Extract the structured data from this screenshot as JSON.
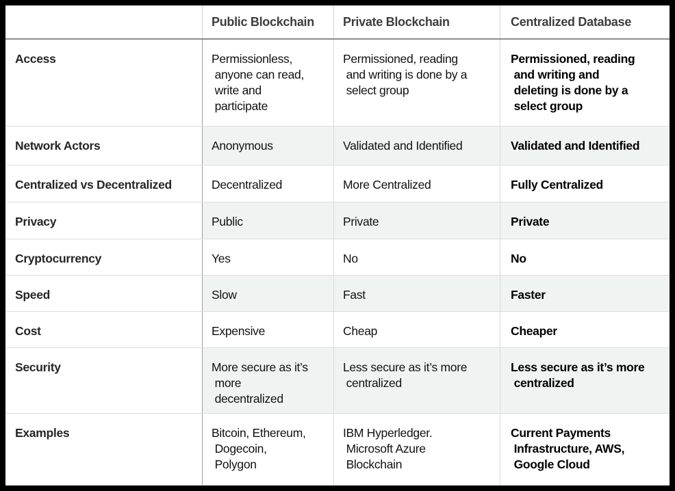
{
  "colors": {
    "frame": "#000000",
    "row_tint": "#eff4f2",
    "header_rule": "#8d8d87"
  },
  "chart_data": {
    "type": "table",
    "title": "Public Blockchain vs Private Blockchain vs Centralized Database comparison",
    "columns": [
      "",
      "Public Blockchain",
      "Private Blockchain",
      "Centralized Database"
    ],
    "rows": [
      {
        "label": "Access",
        "cells": [
          "Permissionless,\n anyone can read,\n write and\n participate",
          "Permissioned, reading\n and writing is done by a\n select group",
          "Permissioned, reading\n and writing and\n deleting is done by a\n select group"
        ]
      },
      {
        "label": "Network Actors",
        "cells": [
          "Anonymous",
          "Validated and Identified",
          "Validated and Identified"
        ]
      },
      {
        "label": "Centralized vs Decentralized",
        "cells": [
          "Decentralized",
          "More Centralized",
          "Fully Centralized"
        ]
      },
      {
        "label": "Privacy",
        "cells": [
          "Public",
          "Private",
          "Private"
        ]
      },
      {
        "label": "Cryptocurrency",
        "cells": [
          "Yes",
          "No",
          "No"
        ]
      },
      {
        "label": "Speed",
        "cells": [
          "Slow",
          "Fast",
          "Faster"
        ]
      },
      {
        "label": "Cost",
        "cells": [
          "Expensive",
          "Cheap",
          "Cheaper"
        ]
      },
      {
        "label": "Security",
        "cells": [
          "More secure as it’s\n more\n decentralized",
          "Less secure as it’s more\n centralized",
          "Less secure as it’s more\n centralized"
        ]
      },
      {
        "label": "Examples",
        "cells": [
          "Bitcoin, Ethereum,\n Dogecoin,\n Polygon",
          "IBM Hyperledger.\n Microsoft Azure\n Blockchain",
          "Current Payments\n Infrastructure, AWS,\n Google Cloud"
        ]
      }
    ]
  }
}
